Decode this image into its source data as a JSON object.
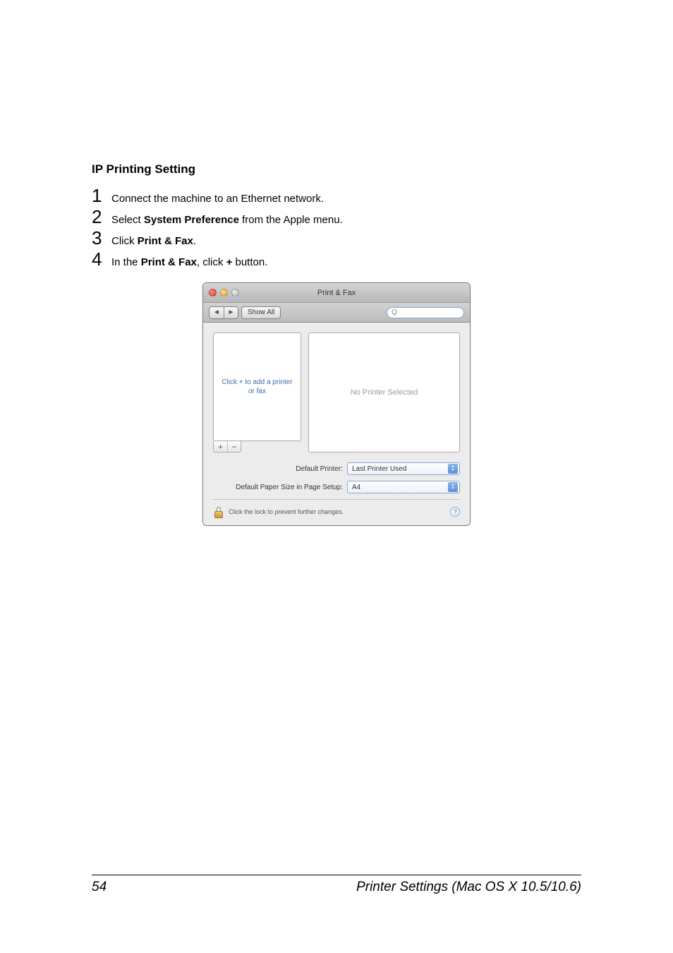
{
  "heading": "IP Printing Setting",
  "steps": [
    {
      "num": "1",
      "pre": "Connect the machine to an Ethernet network.",
      "bold": "",
      "post": ""
    },
    {
      "num": "2",
      "pre": "Select ",
      "bold": "System Preference",
      "post": " from the Apple menu."
    },
    {
      "num": "3",
      "pre": "Click ",
      "bold": "Print & Fax",
      "post": "."
    },
    {
      "num": "4",
      "pre": "In the ",
      "bold": "Print & Fax",
      "post": ", click + button.",
      "post_bold_index": 8
    }
  ],
  "step4": {
    "pre": "In the ",
    "b1": "Print & Fax",
    "mid": ", click ",
    "b2": "+",
    "post": " button."
  },
  "window": {
    "title": "Print & Fax",
    "nav_back": "◄",
    "nav_fwd": "►",
    "show_all": "Show All",
    "search_icon": "Q",
    "list_placeholder": "Click + to add a printer or fax",
    "no_printer": "No Printer Selected",
    "plus": "+",
    "minus": "−",
    "default_printer_label": "Default Printer:",
    "default_printer_value": "Last Printer Used",
    "paper_size_label": "Default Paper Size in Page Setup:",
    "paper_size_value": "A4",
    "lock_text": "Click the lock to prevent further changes.",
    "help": "?",
    "arrow_up": "▴",
    "arrow_down": "▾"
  },
  "footer": {
    "page": "54",
    "title": "Printer Settings (Mac OS X 10.5/10.6)"
  },
  "colors": {
    "page_bg": "#ffffff",
    "text": "#000000",
    "window_border": "#7f7f7f",
    "list_text": "#3b6ea5",
    "no_printer_text": "#9a9a9a"
  }
}
